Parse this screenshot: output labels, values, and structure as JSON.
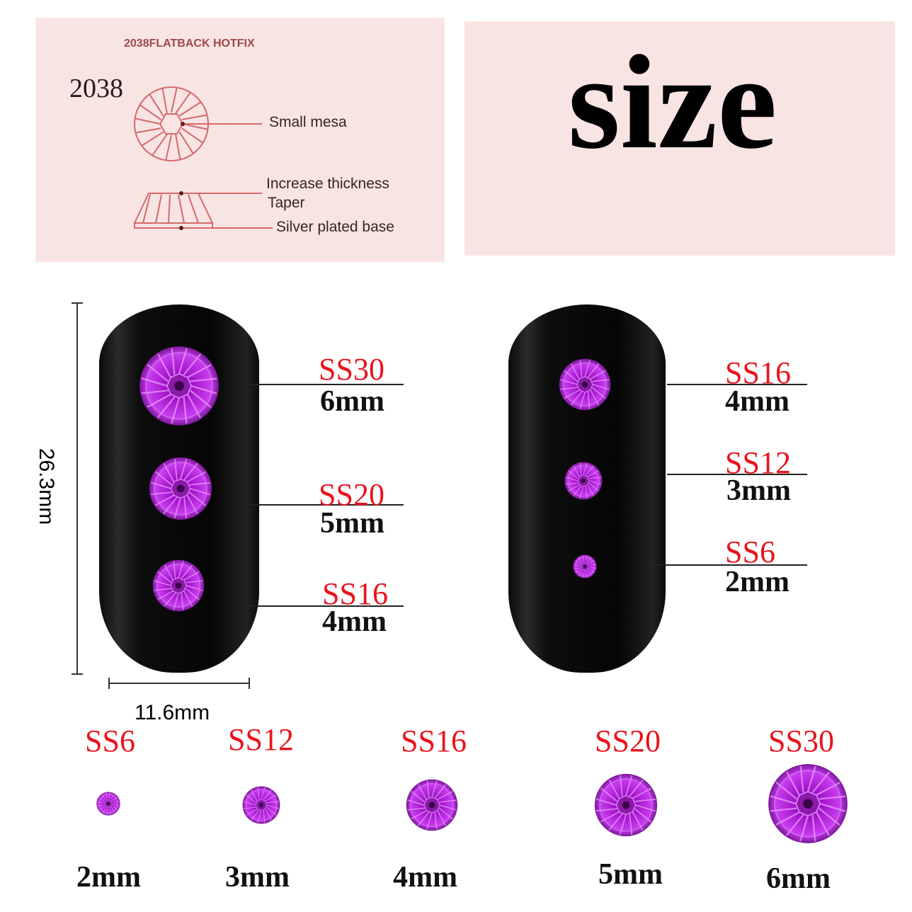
{
  "diagram": {
    "heading": "2038FLATBACK HOTFIX",
    "model": "2038",
    "labels": {
      "small_mesa": "Small mesa",
      "increase_thickness": "Increase thickness",
      "taper": "Taper",
      "silver_base": "Silver plated base"
    }
  },
  "title": "size",
  "dimensions": {
    "height": "26.3mm",
    "width": "11.6mm"
  },
  "left_nail": [
    {
      "size": "SS30",
      "mm": "6mm"
    },
    {
      "size": "SS20",
      "mm": "5mm"
    },
    {
      "size": "SS16",
      "mm": "4mm"
    }
  ],
  "right_nail": [
    {
      "size": "SS16",
      "mm": "4mm"
    },
    {
      "size": "SS12",
      "mm": "3mm"
    },
    {
      "size": "SS6",
      "mm": "2mm"
    }
  ],
  "bottom_row": [
    {
      "size": "SS6",
      "mm": "2mm"
    },
    {
      "size": "SS12",
      "mm": "3mm"
    },
    {
      "size": "SS16",
      "mm": "4mm"
    },
    {
      "size": "SS20",
      "mm": "5mm"
    },
    {
      "size": "SS30",
      "mm": "6mm"
    }
  ],
  "colors": {
    "panel": "#f9e4e4",
    "diagram_line": "#d46a6a",
    "size_label": "#e8141c",
    "gem": "#b21fd6"
  }
}
